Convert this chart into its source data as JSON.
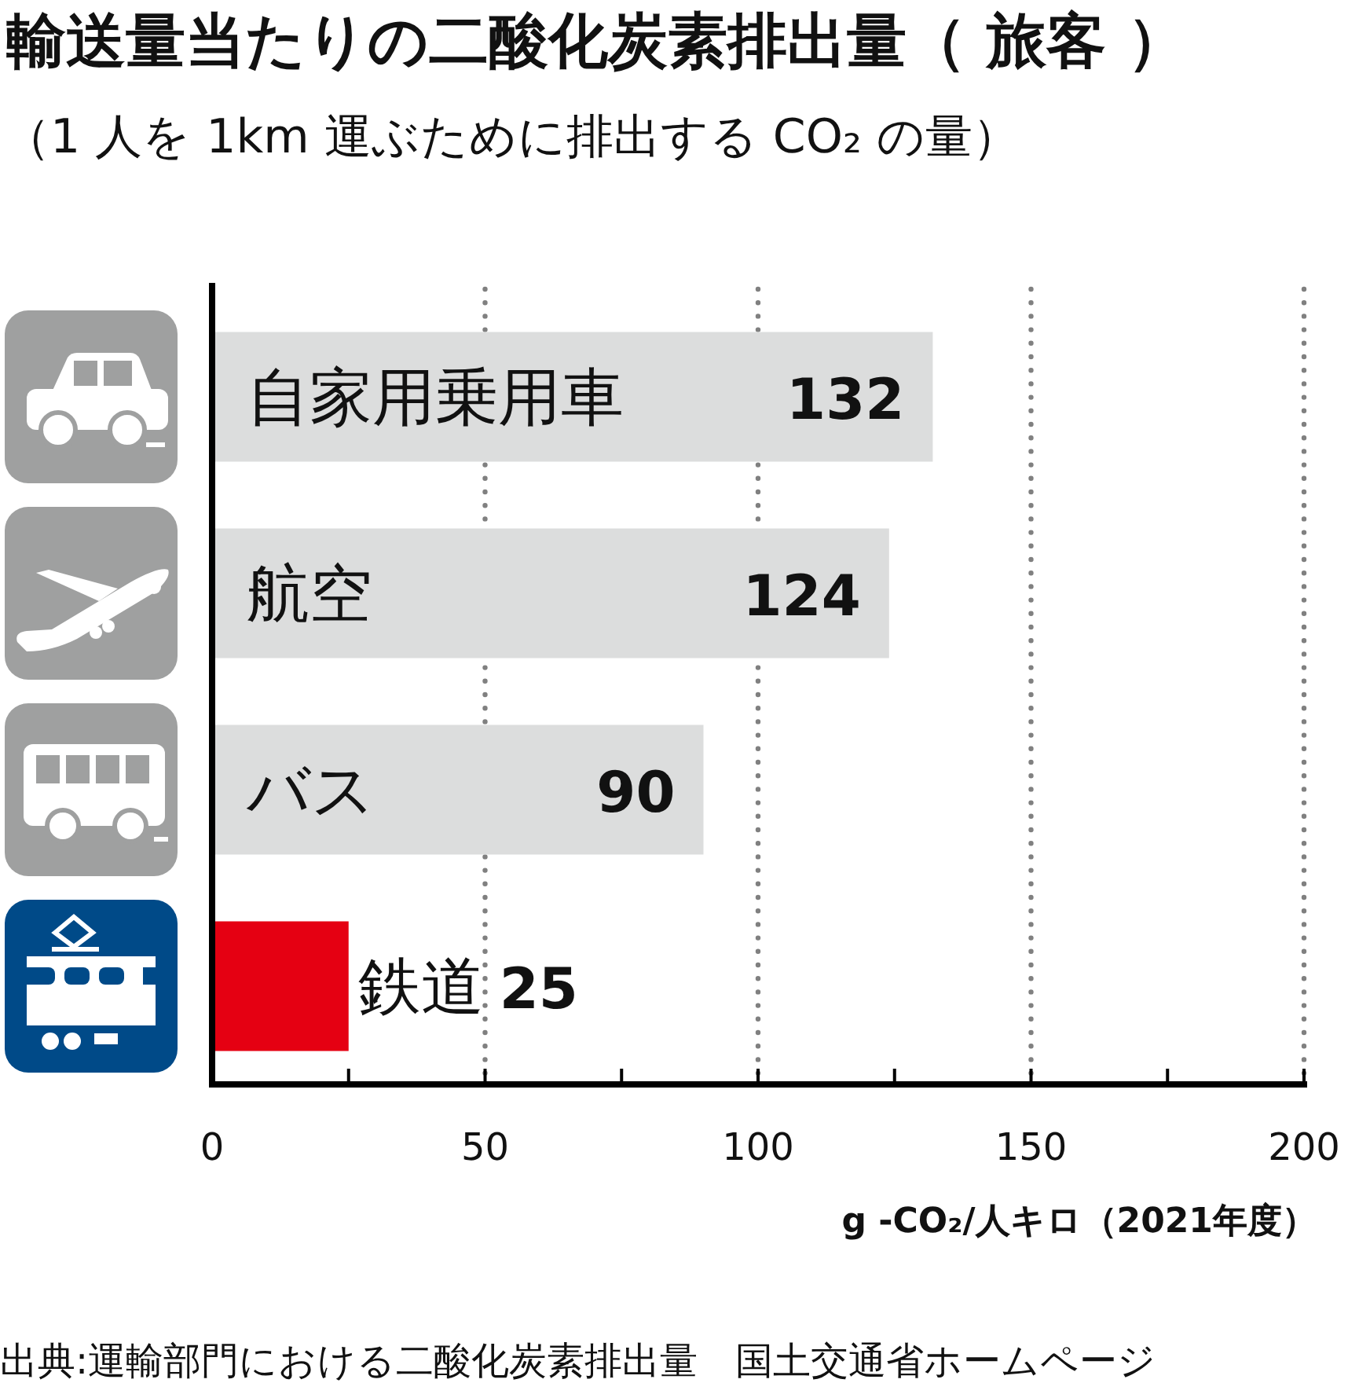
{
  "chart_data": {
    "type": "bar",
    "orientation": "horizontal",
    "title": "輸送量当たりの二酸化炭素排出量（ 旅客 ）",
    "subtitle": "（1 人を 1km 運ぶために排出する CO₂ の量）",
    "xlabel": "g -CO₂/人キロ（2021年度）",
    "annotations": [
      "出典:運輸部門における二酸化炭素排出量　国土交通省ホームページ"
    ],
    "categories": [
      "自家用乗用車",
      "航空",
      "バス",
      "鉄道"
    ],
    "values": [
      132,
      124,
      90,
      25
    ],
    "colors": [
      "#dcdddd",
      "#dcdddd",
      "#dcdddd",
      "#e50012"
    ],
    "xlim": [
      0,
      200
    ],
    "xticks": [
      0,
      {
        "value": 25,
        "label": null
      },
      50,
      {
        "value": 75,
        "label": null
      },
      100,
      {
        "value": 125,
        "label": null
      },
      150,
      {
        "value": 175,
        "label": null
      },
      200
    ],
    "grid": "x",
    "data_labels": true
  }
}
